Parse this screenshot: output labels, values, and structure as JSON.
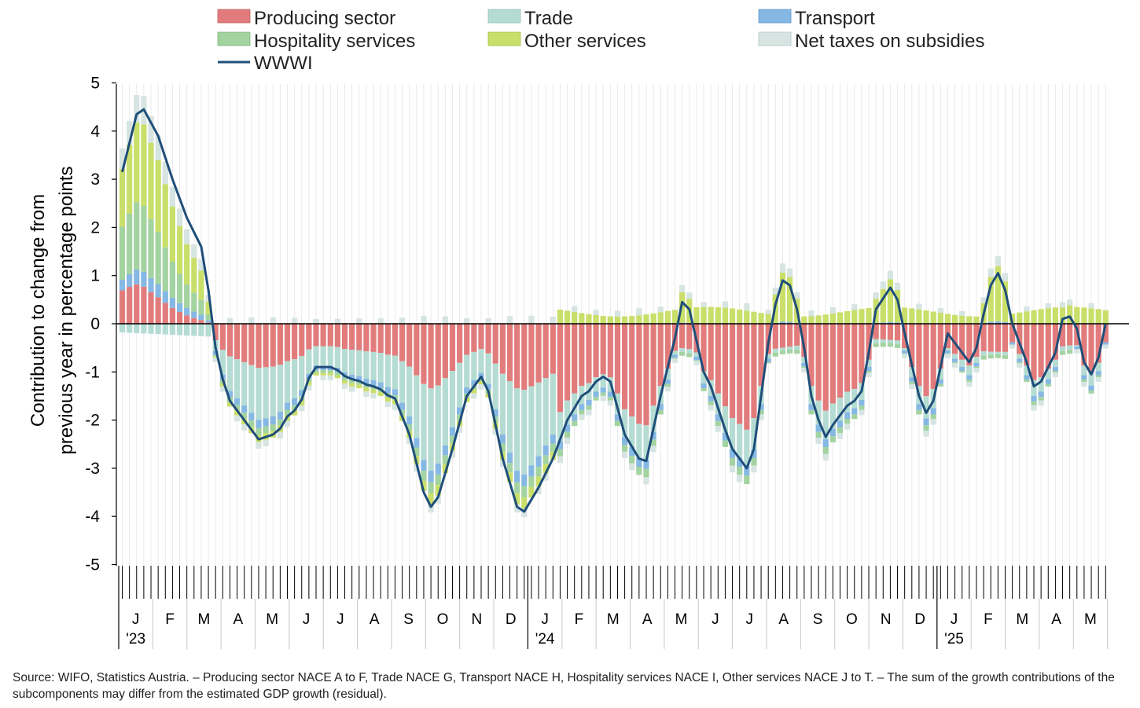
{
  "chart_data": {
    "type": "bar",
    "stacked": true,
    "title": "",
    "ylabel_lines": [
      "Contribution to change from",
      "previous year in percentage points"
    ],
    "xlabel": "",
    "ylim": [
      -5,
      5
    ],
    "yticks": [
      "5",
      "4",
      "3",
      "2",
      "1",
      "0",
      "-1",
      "-2",
      "-3",
      "-4",
      "-5"
    ],
    "grid": "vertical, light",
    "legend_position": "top",
    "period": "weekly, January 2023 to May 2025",
    "month_labels": [
      "J",
      "F",
      "M",
      "A",
      "M",
      "J",
      "J",
      "A",
      "S",
      "O",
      "N",
      "D",
      "J",
      "F",
      "M",
      "A",
      "M",
      "J",
      "J",
      "A",
      "S",
      "O",
      "N",
      "D",
      "J",
      "F",
      "M",
      "A",
      "M"
    ],
    "year_labels": [
      {
        "label": "'23",
        "month_index": 0
      },
      {
        "label": "'24",
        "month_index": 12
      },
      {
        "label": "'25",
        "month_index": 24
      }
    ],
    "series": [
      {
        "name": "Producing sector",
        "color": "#e27c7c",
        "kind": "bar"
      },
      {
        "name": "Trade",
        "color": "#b5dcd2",
        "kind": "bar"
      },
      {
        "name": "Transport",
        "color": "#86b8e4",
        "kind": "bar"
      },
      {
        "name": "Hospitality services",
        "color": "#a3d3a0",
        "kind": "bar"
      },
      {
        "name": "Other services",
        "color": "#c9df6a",
        "kind": "bar"
      },
      {
        "name": "Net taxes on subsidies",
        "color": "#d6e4e2",
        "kind": "bar"
      },
      {
        "name": "WWWI",
        "color": "#1f4e79",
        "kind": "line"
      }
    ],
    "wwwi_keypoints": [
      [
        0,
        3.15
      ],
      [
        2,
        4.35
      ],
      [
        3,
        4.45
      ],
      [
        5,
        3.9
      ],
      [
        7,
        3.0
      ],
      [
        9,
        2.2
      ],
      [
        11,
        1.6
      ],
      [
        12,
        0.7
      ],
      [
        13,
        -0.5
      ],
      [
        14,
        -1.15
      ],
      [
        15,
        -1.6
      ],
      [
        16,
        -1.8
      ],
      [
        18,
        -2.2
      ],
      [
        19,
        -2.4
      ],
      [
        21,
        -2.3
      ],
      [
        24,
        -1.8
      ],
      [
        27,
        -0.9
      ],
      [
        29,
        -0.9
      ],
      [
        32,
        -1.15
      ],
      [
        35,
        -1.3
      ],
      [
        38,
        -1.55
      ],
      [
        40,
        -2.3
      ],
      [
        42,
        -3.5
      ],
      [
        43,
        -3.8
      ],
      [
        44,
        -3.6
      ],
      [
        46,
        -2.6
      ],
      [
        48,
        -1.5
      ],
      [
        50,
        -1.1
      ],
      [
        51,
        -1.4
      ],
      [
        53,
        -2.8
      ],
      [
        55,
        -3.8
      ],
      [
        56,
        -3.9
      ],
      [
        58,
        -3.4
      ],
      [
        60,
        -2.8
      ],
      [
        62,
        -2.0
      ],
      [
        64,
        -1.5
      ],
      [
        67,
        -1.1
      ],
      [
        68,
        -1.2
      ],
      [
        70,
        -2.3
      ],
      [
        72,
        -2.8
      ],
      [
        73,
        -2.85
      ],
      [
        75,
        -1.5
      ],
      [
        77,
        -0.3
      ],
      [
        78,
        0.45
      ],
      [
        79,
        0.3
      ],
      [
        81,
        -1.0
      ],
      [
        82,
        -1.3
      ],
      [
        84,
        -2.2
      ],
      [
        85,
        -2.6
      ],
      [
        87,
        -3.0
      ],
      [
        88,
        -2.6
      ],
      [
        89,
        -1.5
      ],
      [
        90,
        -0.4
      ],
      [
        91,
        0.4
      ],
      [
        92,
        0.9
      ],
      [
        93,
        0.8
      ],
      [
        94,
        0.3
      ],
      [
        95,
        -0.5
      ],
      [
        96,
        -1.5
      ],
      [
        97,
        -2.0
      ],
      [
        98,
        -2.35
      ],
      [
        99,
        -2.1
      ],
      [
        101,
        -1.7
      ],
      [
        102,
        -1.6
      ],
      [
        103,
        -1.4
      ],
      [
        104,
        -0.6
      ],
      [
        105,
        0.3
      ],
      [
        107,
        0.75
      ],
      [
        108,
        0.5
      ],
      [
        109,
        -0.2
      ],
      [
        111,
        -1.5
      ],
      [
        112,
        -1.85
      ],
      [
        113,
        -1.6
      ],
      [
        114,
        -0.9
      ],
      [
        115,
        -0.2
      ],
      [
        116,
        -0.4
      ],
      [
        118,
        -0.8
      ],
      [
        119,
        -0.5
      ],
      [
        120,
        0.2
      ],
      [
        121,
        0.8
      ],
      [
        122,
        1.05
      ],
      [
        123,
        0.7
      ],
      [
        124,
        0.0
      ],
      [
        126,
        -0.8
      ],
      [
        127,
        -1.3
      ],
      [
        128,
        -1.2
      ],
      [
        130,
        -0.6
      ],
      [
        131,
        0.1
      ],
      [
        132,
        0.15
      ],
      [
        133,
        -0.1
      ],
      [
        134,
        -0.8
      ],
      [
        135,
        -1.05
      ],
      [
        136,
        -0.7
      ],
      [
        137,
        0.0
      ]
    ]
  },
  "legend": {
    "producing": "Producing sector",
    "trade": "Trade",
    "transport": "Transport",
    "hospitality": "Hospitality services",
    "other": "Other services",
    "taxes": "Net taxes on subsidies",
    "wwwi": "WWWI"
  },
  "source_text": "Source: WIFO, Statistics Austria. – Producing sector NACE A to F, Trade NACE G, Transport NACE H, Hospitality services NACE I, Other services NACE J to T. – The sum of the growth contributions of the subcomponents may differ from the estimated GDP growth (residual)."
}
